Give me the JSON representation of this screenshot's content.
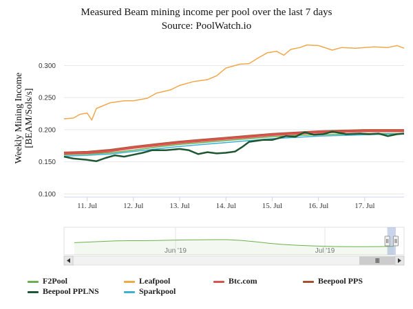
{
  "chart_data": {
    "type": "line",
    "title": "Measured Beam mining income per pool over the last 7 days",
    "subtitle": "Source: PoolWatch.io",
    "ylabel_line1": "Weekly Mining Income",
    "ylabel_line2": "[BEAM/Sols/s]",
    "ylim": [
      0.095,
      0.34
    ],
    "yticks": [
      0.1,
      0.15,
      0.2,
      0.25,
      0.3
    ],
    "ytick_labels": [
      "0.100",
      "0.150",
      "0.200",
      "0.250",
      "0.300"
    ],
    "xlim": [
      10.5,
      17.85
    ],
    "xticks": [
      11,
      12,
      13,
      14,
      15,
      16,
      17
    ],
    "xtick_labels": [
      "11. Jul",
      "12. Jul",
      "13. Jul",
      "14. Jul",
      "15. Jul",
      "16. Jul",
      "17. Jul"
    ],
    "grid": "horizontal",
    "legend_position": "bottom",
    "series": [
      {
        "name": "F2Pool",
        "color": "#6ab04c",
        "width": 1.5,
        "points": [
          [
            10.5,
            0.161
          ],
          [
            11,
            0.162
          ],
          [
            11.5,
            0.164
          ],
          [
            12,
            0.168
          ],
          [
            12.5,
            0.173
          ],
          [
            13,
            0.177
          ],
          [
            13.5,
            0.18
          ],
          [
            14,
            0.183
          ],
          [
            14.5,
            0.186
          ],
          [
            15,
            0.189
          ],
          [
            15.5,
            0.191
          ],
          [
            16,
            0.192
          ],
          [
            16.5,
            0.193
          ],
          [
            17,
            0.194
          ],
          [
            17.5,
            0.194
          ],
          [
            17.85,
            0.194
          ]
        ]
      },
      {
        "name": "Leafpool",
        "color": "#f0a849",
        "width": 1.5,
        "points": [
          [
            10.5,
            0.217
          ],
          [
            10.7,
            0.218
          ],
          [
            10.85,
            0.224
          ],
          [
            11,
            0.226
          ],
          [
            11.1,
            0.215
          ],
          [
            11.2,
            0.233
          ],
          [
            11.5,
            0.242
          ],
          [
            11.8,
            0.245
          ],
          [
            12,
            0.245
          ],
          [
            12.3,
            0.249
          ],
          [
            12.5,
            0.257
          ],
          [
            12.8,
            0.262
          ],
          [
            13,
            0.269
          ],
          [
            13.3,
            0.275
          ],
          [
            13.6,
            0.278
          ],
          [
            13.8,
            0.284
          ],
          [
            14,
            0.296
          ],
          [
            14.3,
            0.302
          ],
          [
            14.5,
            0.303
          ],
          [
            14.7,
            0.312
          ],
          [
            14.9,
            0.32
          ],
          [
            15.1,
            0.322
          ],
          [
            15.25,
            0.316
          ],
          [
            15.4,
            0.325
          ],
          [
            15.6,
            0.328
          ],
          [
            15.75,
            0.332
          ],
          [
            16,
            0.331
          ],
          [
            16.3,
            0.324
          ],
          [
            16.5,
            0.328
          ],
          [
            16.8,
            0.327
          ],
          [
            17,
            0.328
          ],
          [
            17.2,
            0.329
          ],
          [
            17.5,
            0.328
          ],
          [
            17.7,
            0.331
          ],
          [
            17.85,
            0.327
          ]
        ]
      },
      {
        "name": "Btc.com",
        "color": "#d9534f",
        "width": 3.5,
        "points": [
          [
            10.5,
            0.163
          ],
          [
            11,
            0.164
          ],
          [
            11.5,
            0.167
          ],
          [
            12,
            0.172
          ],
          [
            12.5,
            0.176
          ],
          [
            13,
            0.18
          ],
          [
            13.5,
            0.183
          ],
          [
            14,
            0.186
          ],
          [
            14.5,
            0.189
          ],
          [
            15,
            0.192
          ],
          [
            15.5,
            0.194
          ],
          [
            16,
            0.196
          ],
          [
            16.5,
            0.197
          ],
          [
            17,
            0.198
          ],
          [
            17.5,
            0.198
          ],
          [
            17.85,
            0.198
          ]
        ]
      },
      {
        "name": "Beepool PPS",
        "color": "#a0522d",
        "width": 1.5,
        "points": [
          [
            10.5,
            0.165
          ],
          [
            11,
            0.166
          ],
          [
            11.5,
            0.169
          ],
          [
            12,
            0.174
          ],
          [
            12.5,
            0.178
          ],
          [
            13,
            0.182
          ],
          [
            13.5,
            0.185
          ],
          [
            14,
            0.188
          ],
          [
            14.5,
            0.191
          ],
          [
            15,
            0.194
          ],
          [
            15.5,
            0.196
          ],
          [
            16,
            0.198
          ],
          [
            16.5,
            0.199
          ],
          [
            17,
            0.2
          ],
          [
            17.5,
            0.2
          ],
          [
            17.85,
            0.2
          ]
        ]
      },
      {
        "name": "Beepool PPLNS",
        "color": "#1e5631",
        "width": 2.5,
        "points": [
          [
            10.5,
            0.158
          ],
          [
            10.7,
            0.155
          ],
          [
            11,
            0.153
          ],
          [
            11.2,
            0.151
          ],
          [
            11.4,
            0.156
          ],
          [
            11.6,
            0.16
          ],
          [
            11.8,
            0.158
          ],
          [
            12,
            0.161
          ],
          [
            12.2,
            0.164
          ],
          [
            12.4,
            0.168
          ],
          [
            12.7,
            0.168
          ],
          [
            13,
            0.17
          ],
          [
            13.2,
            0.168
          ],
          [
            13.4,
            0.162
          ],
          [
            13.6,
            0.165
          ],
          [
            13.8,
            0.163
          ],
          [
            14,
            0.164
          ],
          [
            14.2,
            0.166
          ],
          [
            14.35,
            0.173
          ],
          [
            14.5,
            0.181
          ],
          [
            14.8,
            0.184
          ],
          [
            15,
            0.184
          ],
          [
            15.3,
            0.19
          ],
          [
            15.5,
            0.189
          ],
          [
            15.7,
            0.196
          ],
          [
            15.9,
            0.192
          ],
          [
            16.1,
            0.193
          ],
          [
            16.3,
            0.197
          ],
          [
            16.6,
            0.193
          ],
          [
            16.9,
            0.194
          ],
          [
            17.1,
            0.193
          ],
          [
            17.3,
            0.194
          ],
          [
            17.5,
            0.19
          ],
          [
            17.7,
            0.193
          ],
          [
            17.85,
            0.194
          ]
        ]
      },
      {
        "name": "Sparkpool",
        "color": "#3ab1d3",
        "width": 1.5,
        "points": [
          [
            10.5,
            0.159
          ],
          [
            11,
            0.16
          ],
          [
            11.5,
            0.162
          ],
          [
            12,
            0.166
          ],
          [
            12.5,
            0.17
          ],
          [
            13,
            0.174
          ],
          [
            13.5,
            0.177
          ],
          [
            14,
            0.18
          ],
          [
            14.5,
            0.183
          ],
          [
            15,
            0.186
          ],
          [
            15.5,
            0.188
          ],
          [
            16,
            0.19
          ],
          [
            16.5,
            0.191
          ],
          [
            17,
            0.192
          ],
          [
            17.5,
            0.193
          ],
          [
            17.85,
            0.193
          ]
        ]
      }
    ],
    "navigator": {
      "xtick_labels": [
        "Jun '19",
        "Jul '19"
      ],
      "series_values": [
        0.62,
        0.66,
        0.7,
        0.74,
        0.75,
        0.75,
        0.76,
        0.78,
        0.8,
        0.81,
        0.82,
        0.82,
        0.77,
        0.68,
        0.58,
        0.5,
        0.45,
        0.41,
        0.38,
        0.36,
        0.35,
        0.35,
        0.36,
        0.38
      ],
      "selection_start_fraction": 0.89,
      "selection_end_fraction": 1.0,
      "scrollbar_handle_fraction": [
        0.89,
        1.0
      ]
    }
  },
  "legend": [
    {
      "label": "F2Pool",
      "color": "#6ab04c"
    },
    {
      "label": "Leafpool",
      "color": "#f0a849"
    },
    {
      "label": "Btc.com",
      "color": "#d9534f"
    },
    {
      "label": "Beepool PPS",
      "color": "#a0522d"
    },
    {
      "label": "Beepool PPLNS",
      "color": "#1e5631"
    },
    {
      "label": "Sparkpool",
      "color": "#3ab1d3"
    }
  ]
}
